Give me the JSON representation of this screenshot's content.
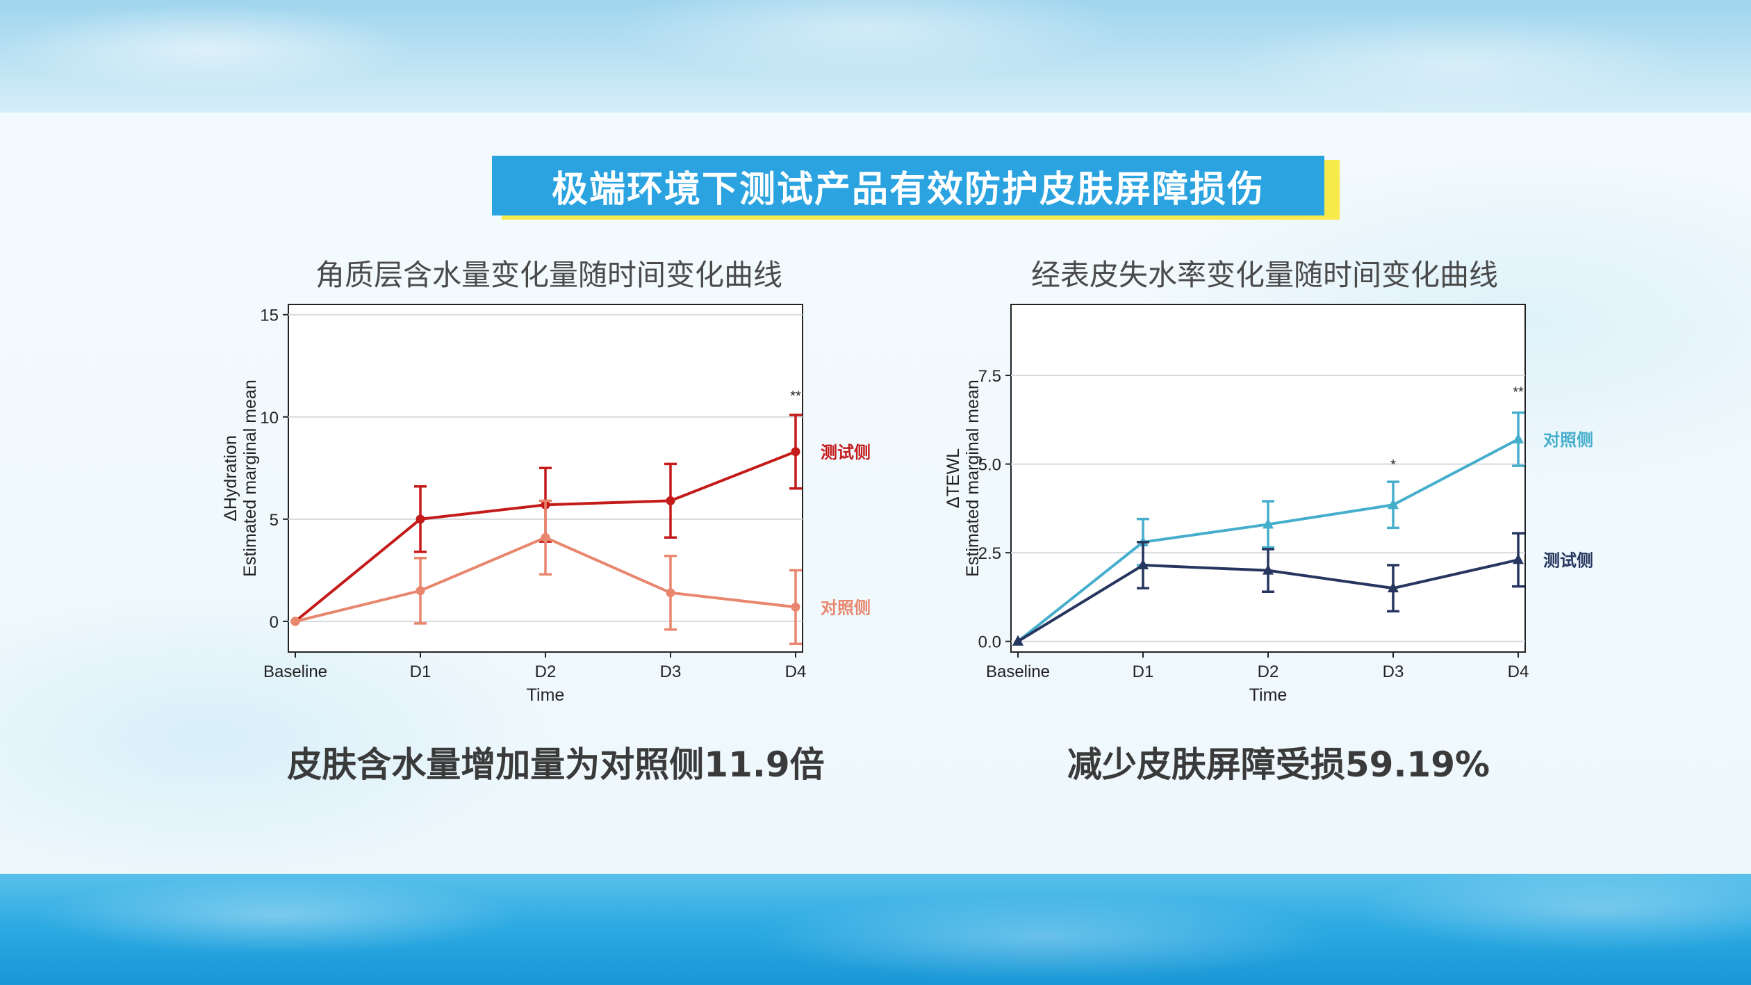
{
  "banner": {
    "title": "极端环境下测试产品有效防护皮肤屏障损伤"
  },
  "left": {
    "title": "角质层含水量变化量随时间变化曲线",
    "summary": "皮肤含水量增加量为对照侧11.9倍"
  },
  "right": {
    "title": "经表皮失水率变化量随时间变化曲线",
    "summary": "减少皮肤屏障受损59.19%"
  },
  "colors": {
    "left_test": "#c41a1a",
    "left_control": "#e8866e",
    "right_control": "#45aecc",
    "right_test": "#27365e",
    "banner_bg": "#2aa3e0",
    "banner_accent": "#f6e94a"
  },
  "chart_data": [
    {
      "type": "line",
      "xlabel": "Time",
      "ylabel": "ΔHydration",
      "ylabel2": "Estimated marginal mean",
      "categories": [
        "Baseline",
        "D1",
        "D2",
        "D3",
        "D4"
      ],
      "ylim": [
        -1.5,
        15.5
      ],
      "yticks": [
        0,
        5,
        10,
        15
      ],
      "grid": true,
      "marker": "circle",
      "series": [
        {
          "name": "测试侧",
          "color": "#c41a1a",
          "values": [
            0,
            5.0,
            5.7,
            5.9,
            8.3
          ],
          "err": [
            0,
            1.6,
            1.8,
            1.8,
            1.8
          ]
        },
        {
          "name": "对照侧",
          "color": "#e8866e",
          "values": [
            0,
            1.5,
            4.1,
            1.4,
            0.7
          ],
          "err": [
            0,
            1.6,
            1.8,
            1.8,
            1.8
          ]
        }
      ],
      "annotations": [
        {
          "category": "D4",
          "text": "**",
          "y": 10.8
        }
      ],
      "legend_placement": "right"
    },
    {
      "type": "line",
      "xlabel": "Time",
      "ylabel": "ΔTEWL",
      "ylabel2": "Estimated marginal mean",
      "categories": [
        "Baseline",
        "D1",
        "D2",
        "D3",
        "D4"
      ],
      "ylim": [
        -0.3,
        9.5
      ],
      "yticks": [
        0.0,
        2.5,
        5.0,
        7.5
      ],
      "yticklabels": [
        "0.0",
        "2.5",
        "5.0",
        "7.5"
      ],
      "grid": true,
      "marker": "triangle",
      "series": [
        {
          "name": "对照侧",
          "color": "#45aecc",
          "values": [
            0,
            2.8,
            3.3,
            3.85,
            5.7
          ],
          "err": [
            0,
            0.65,
            0.65,
            0.65,
            0.75
          ]
        },
        {
          "name": "测试侧",
          "color": "#27365e",
          "values": [
            0,
            2.15,
            2.0,
            1.5,
            2.3
          ],
          "err": [
            0,
            0.65,
            0.6,
            0.65,
            0.75
          ]
        }
      ],
      "annotations": [
        {
          "category": "D3",
          "text": "*",
          "y": 4.85
        },
        {
          "category": "D4",
          "text": "**",
          "y": 6.9
        }
      ],
      "legend_placement": "right"
    }
  ]
}
